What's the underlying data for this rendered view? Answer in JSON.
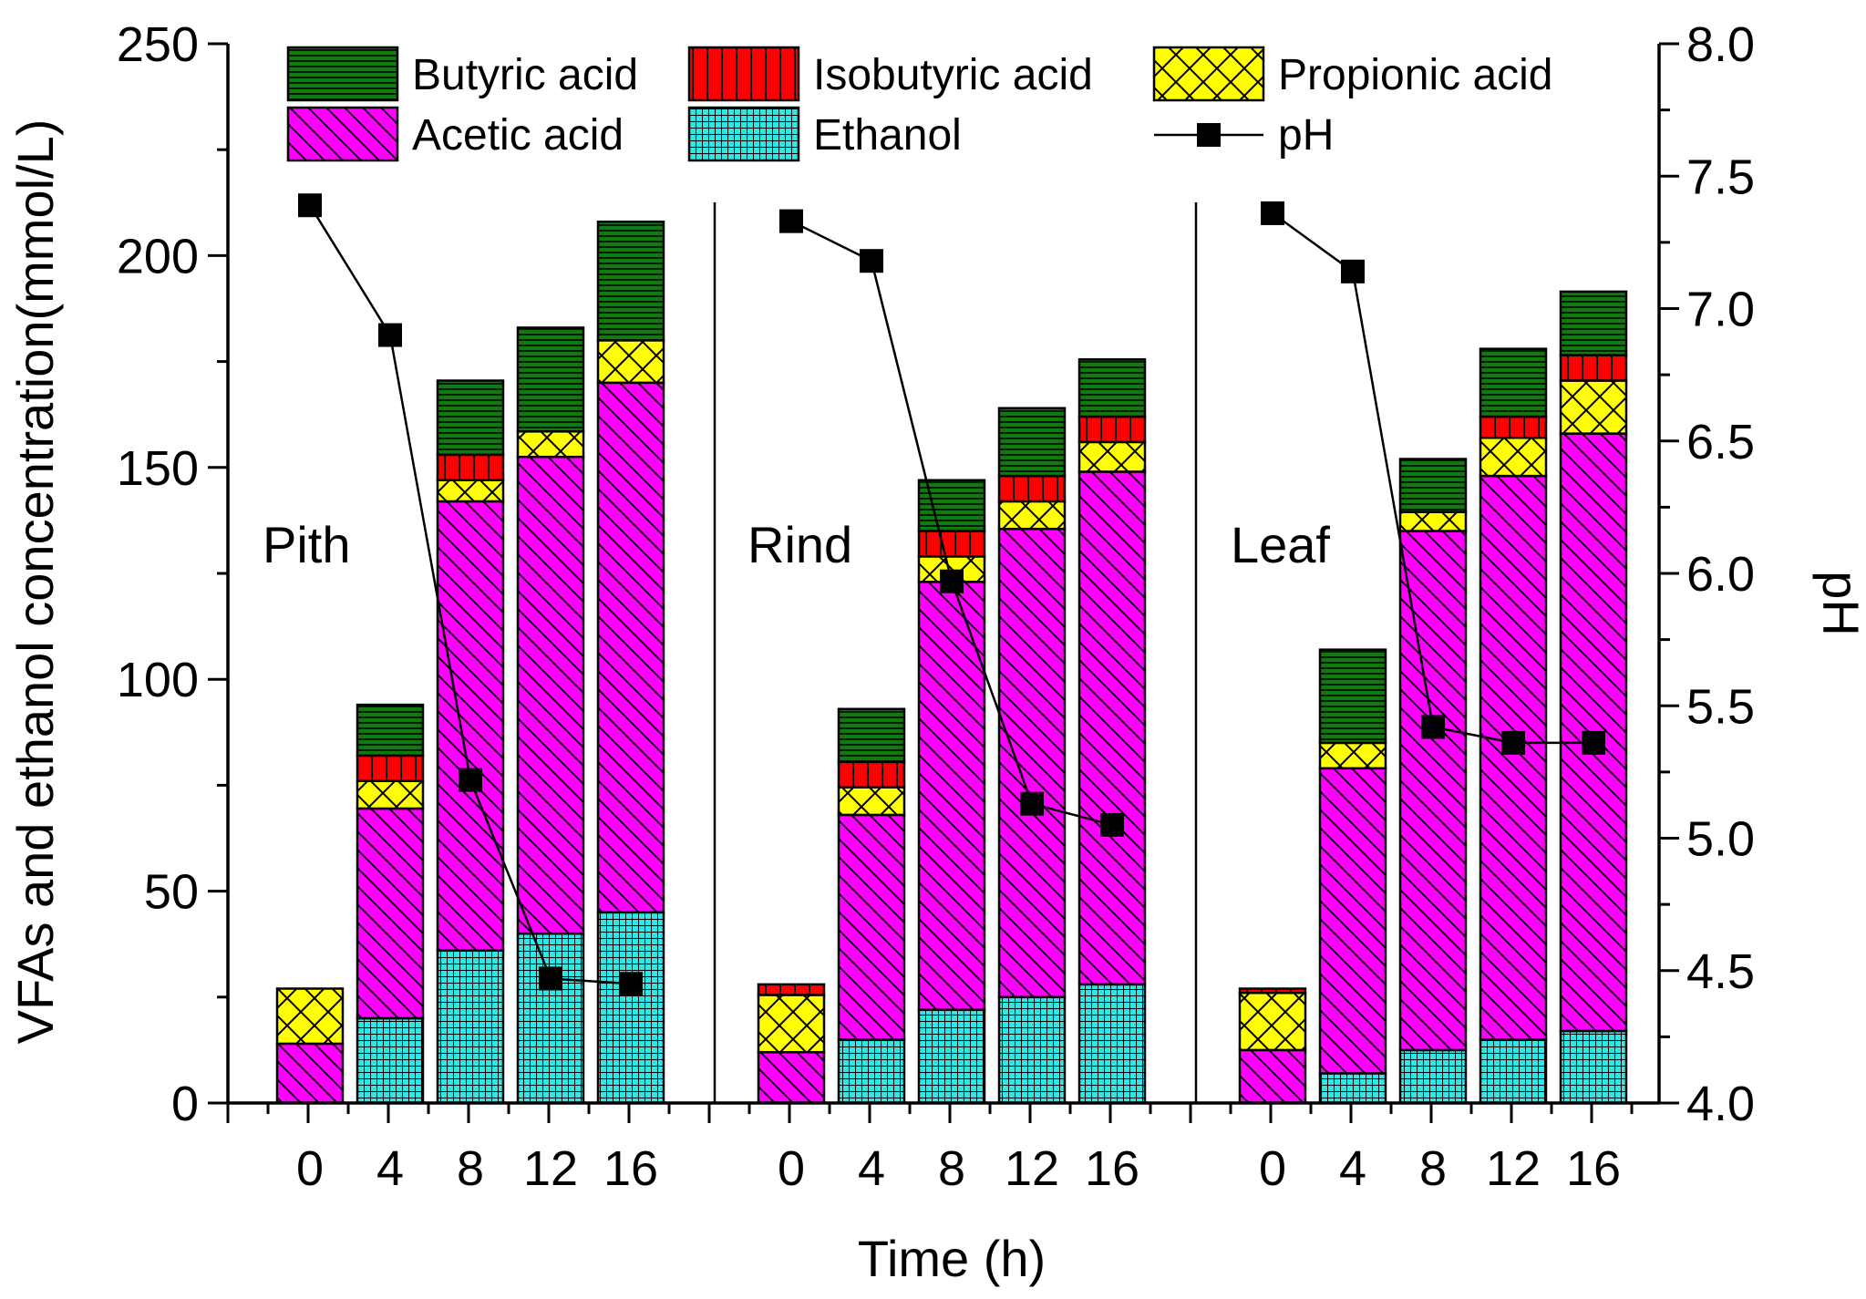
{
  "chart_data": {
    "type": "bar",
    "xlabel": "Time (h)",
    "ylabel": "VFAs and ethanol concentration(mmol/L)",
    "y2label": "pH",
    "ylim": [
      0,
      250
    ],
    "y2lim": [
      4.0,
      8.0
    ],
    "yticks": [
      0,
      50,
      100,
      150,
      200,
      250
    ],
    "y2ticks": [
      "4.0",
      "4.5",
      "5.0",
      "5.5",
      "6.0",
      "6.5",
      "7.0",
      "7.5",
      "8.0"
    ],
    "groups": [
      "Pith",
      "Rind",
      "Leaf"
    ],
    "categories": [
      "0",
      "4",
      "8",
      "12",
      "16"
    ],
    "stack_order": [
      "Ethanol",
      "Acetic acid",
      "Propionic acid",
      "Isobutyric acid",
      "Butyric acid"
    ],
    "legend": {
      "position": "top",
      "entries": [
        "Butyric acid",
        "Isobutyric acid",
        "Propionic acid",
        "Acetic acid",
        "Ethanol",
        "pH"
      ]
    },
    "colors": {
      "Ethanol": "#33e6e6",
      "Acetic acid": "#ff00ff",
      "Propionic acid": "#ffff00",
      "Isobutyric acid": "#ff0000",
      "Butyric acid": "#127812",
      "pH": "#000000"
    },
    "series": [
      {
        "group": "Pith",
        "name": "Ethanol",
        "values": [
          0,
          20,
          36,
          40,
          45
        ]
      },
      {
        "group": "Pith",
        "name": "Acetic acid",
        "values": [
          14,
          49.5,
          106,
          112.5,
          125
        ]
      },
      {
        "group": "Pith",
        "name": "Propionic acid",
        "values": [
          13,
          6.5,
          5,
          6,
          10
        ]
      },
      {
        "group": "Pith",
        "name": "Isobutyric acid",
        "values": [
          0,
          6,
          6,
          0,
          0
        ]
      },
      {
        "group": "Pith",
        "name": "Butyric acid",
        "values": [
          0,
          12,
          17.5,
          24.5,
          28
        ]
      },
      {
        "group": "Pith",
        "name": "pH",
        "values": [
          7.39,
          6.9,
          5.22,
          4.47,
          4.45
        ]
      },
      {
        "group": "Rind",
        "name": "Ethanol",
        "values": [
          0,
          15,
          22,
          25,
          28
        ]
      },
      {
        "group": "Rind",
        "name": "Acetic acid",
        "values": [
          12,
          53,
          101,
          110.5,
          121
        ]
      },
      {
        "group": "Rind",
        "name": "Propionic acid",
        "values": [
          13.5,
          6.5,
          6,
          6.5,
          7
        ]
      },
      {
        "group": "Rind",
        "name": "Isobutyric acid",
        "values": [
          2.5,
          6,
          6,
          6,
          6
        ]
      },
      {
        "group": "Rind",
        "name": "Butyric acid",
        "values": [
          0,
          12.5,
          12,
          16,
          13.5
        ]
      },
      {
        "group": "Rind",
        "name": "pH",
        "values": [
          7.33,
          7.18,
          5.97,
          5.13,
          5.05
        ]
      },
      {
        "group": "Leaf",
        "name": "Ethanol",
        "values": [
          0,
          7,
          12.5,
          15,
          17
        ]
      },
      {
        "group": "Leaf",
        "name": "Acetic acid",
        "values": [
          12.5,
          72,
          122.5,
          133,
          141
        ]
      },
      {
        "group": "Leaf",
        "name": "Propionic acid",
        "values": [
          13.5,
          6,
          4.5,
          9,
          12.5
        ]
      },
      {
        "group": "Leaf",
        "name": "Isobutyric acid",
        "values": [
          1,
          0,
          0,
          5,
          6
        ]
      },
      {
        "group": "Leaf",
        "name": "Butyric acid",
        "values": [
          0,
          22,
          12.5,
          16,
          15
        ]
      },
      {
        "group": "Leaf",
        "name": "pH",
        "values": [
          7.36,
          7.14,
          5.42,
          5.36,
          5.36
        ]
      }
    ]
  }
}
